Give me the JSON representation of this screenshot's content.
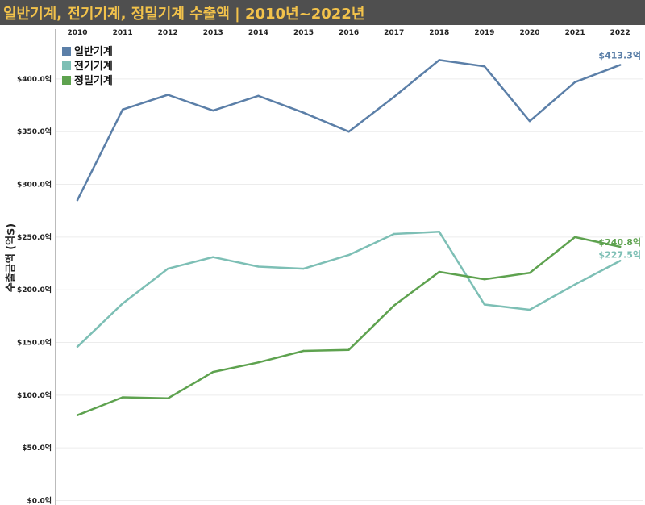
{
  "title": "일반기계, 전기기계, 정밀기계 수출액 | 2010년~2022년",
  "chart_data": {
    "type": "line",
    "title": "일반기계, 전기기계, 정밀기계 수출액 | 2010년~2022년",
    "xlabel": "",
    "ylabel": "수출금액 (억$)",
    "categories": [
      "2010",
      "2011",
      "2012",
      "2013",
      "2014",
      "2015",
      "2016",
      "2017",
      "2018",
      "2019",
      "2020",
      "2021",
      "2022"
    ],
    "ylim": [
      0,
      440
    ],
    "yticks": [
      0,
      50,
      100,
      150,
      200,
      250,
      300,
      350,
      400
    ],
    "ytick_labels": [
      "$0.0억",
      "$50.0억",
      "$100.0억",
      "$150.0억",
      "$200.0억",
      "$250.0억",
      "$300.0억",
      "$350.0억",
      "$400.0억"
    ],
    "grid": true,
    "legend_position": "top-left",
    "series": [
      {
        "name": "일반기계",
        "color": "#5b7fa8",
        "values": [
          285,
          371,
          385,
          370,
          384,
          368,
          350,
          383,
          418,
          412,
          360,
          397,
          413.3
        ],
        "end_label": "$413.3억"
      },
      {
        "name": "전기기계",
        "color": "#7dbfb5",
        "values": [
          146,
          187,
          220,
          231,
          222,
          220,
          233,
          253,
          255,
          186,
          181,
          205,
          227.5
        ],
        "end_label": "$227.5억"
      },
      {
        "name": "정밀기계",
        "color": "#5ea24f",
        "values": [
          81,
          98,
          97,
          122,
          131,
          142,
          143,
          185,
          217,
          210,
          216,
          250,
          240.8
        ],
        "end_label": "$240.8억"
      }
    ]
  }
}
